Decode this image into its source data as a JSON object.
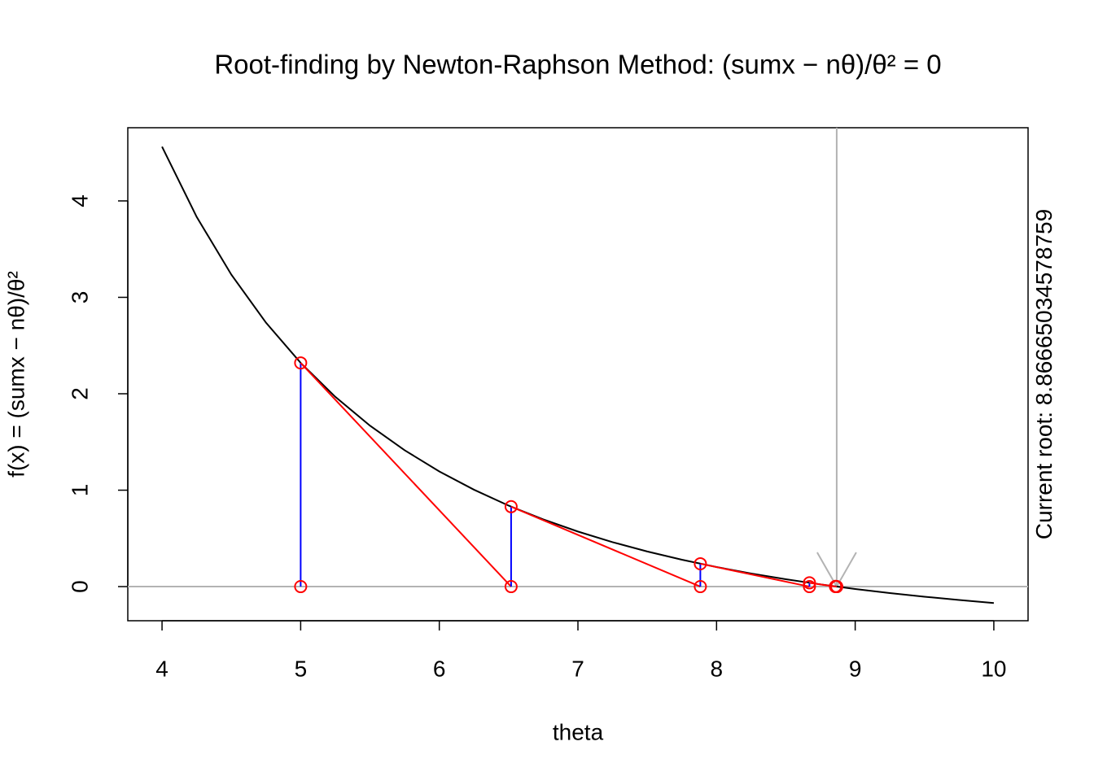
{
  "chart_data": {
    "type": "newton",
    "title": "Root-finding by Newton-Raphson Method: (sumx − nθ)/θ² = 0",
    "x_label": "theta",
    "y_label": "f(x) = (sumx − nθ)/θ²",
    "root_label": "Current root:",
    "root": 8.86665034578759,
    "xlim": [
      3.753,
      10.247
    ],
    "ylim": [
      -0.354,
      4.759
    ],
    "xticks": [
      4,
      5,
      6,
      7,
      8,
      9,
      10
    ],
    "yticks": [
      0,
      1,
      2,
      3,
      4
    ],
    "curve": {
      "color": "#000000",
      "x": [
        4,
        4.25,
        4.5,
        4.75,
        5,
        5.25,
        5.5,
        5.75,
        6,
        6.25,
        6.5,
        6.75,
        7,
        7.25,
        7.5,
        7.75,
        8,
        8.25,
        8.5,
        8.75,
        9,
        9.25,
        9.5,
        9.75,
        10
      ],
      "values": [
        4.5625,
        3.834,
        3.235,
        2.737,
        2.32,
        1.968,
        1.669,
        1.414,
        1.194,
        1.005,
        0.84,
        0.697,
        0.571,
        0.461,
        0.364,
        0.279,
        0.203,
        0.136,
        0.076,
        0.023,
        -0.025,
        -0.067,
        -0.105,
        -0.139,
        -0.17
      ]
    },
    "iterations": {
      "point_color": "#ff0000",
      "step_color": "#ff0000",
      "drop_color": "#0000ff",
      "x": [
        5,
        6.518,
        7.883,
        8.67,
        8.858,
        8.8666
      ],
      "values": [
        2.32,
        0.829,
        0.237,
        0.039,
        0.002,
        0
      ]
    },
    "guide_color": "#b3b3b3"
  }
}
